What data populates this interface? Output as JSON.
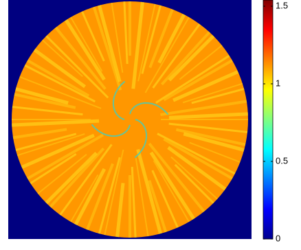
{
  "chart_data": {
    "type": "heatmap",
    "colormap": "jet",
    "clim": [
      0,
      1.54
    ],
    "cticks": [
      0,
      0.5,
      1,
      1.5
    ],
    "background_value": 0,
    "disk_value": 1.12
  }
}
